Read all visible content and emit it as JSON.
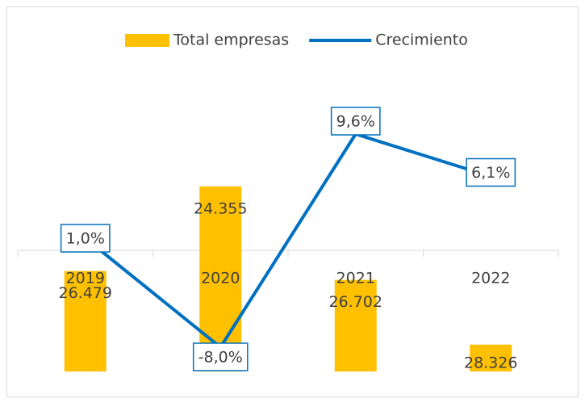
{
  "chart_data": {
    "type": "bar-line",
    "categories": [
      "2019",
      "2020",
      "2021",
      "2022"
    ],
    "series": [
      {
        "name": "Total empresas",
        "type": "bar",
        "color": "#FFC000",
        "axis": "y2",
        "values": [
          26479,
          24355,
          26702,
          28326
        ],
        "value_labels": [
          "26.479",
          "24.355",
          "26.702",
          "28.326"
        ]
      },
      {
        "name": "Crecimiento",
        "type": "line",
        "color": "#0070C0",
        "values": [
          1.0,
          -8.0,
          9.6,
          6.1
        ],
        "value_labels": [
          "1,0%",
          "-8,0%",
          "9,6%",
          "6,1%"
        ]
      }
    ],
    "ylim": [
      -10,
      15
    ],
    "y2lim": [
      21400,
      29000
    ],
    "y2_reversed": true,
    "legend": "top"
  }
}
